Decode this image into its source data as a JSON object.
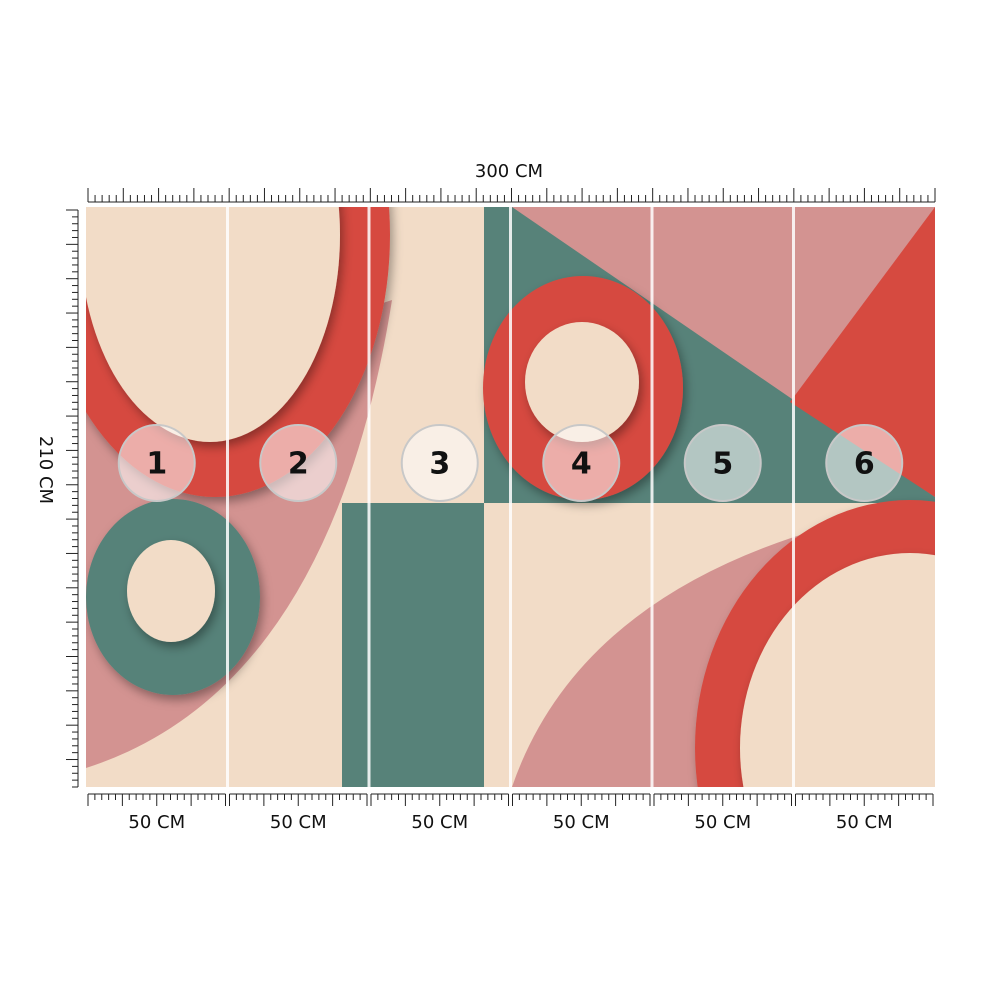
{
  "dimensions": {
    "width": "300 CM",
    "height": "210 CM"
  },
  "panels": [
    {
      "number": "1",
      "width": "50 CM"
    },
    {
      "number": "2",
      "width": "50 CM"
    },
    {
      "number": "3",
      "width": "50 CM"
    },
    {
      "number": "4",
      "width": "50 CM"
    },
    {
      "number": "5",
      "width": "50 CM"
    },
    {
      "number": "6",
      "width": "50 CM"
    }
  ]
}
